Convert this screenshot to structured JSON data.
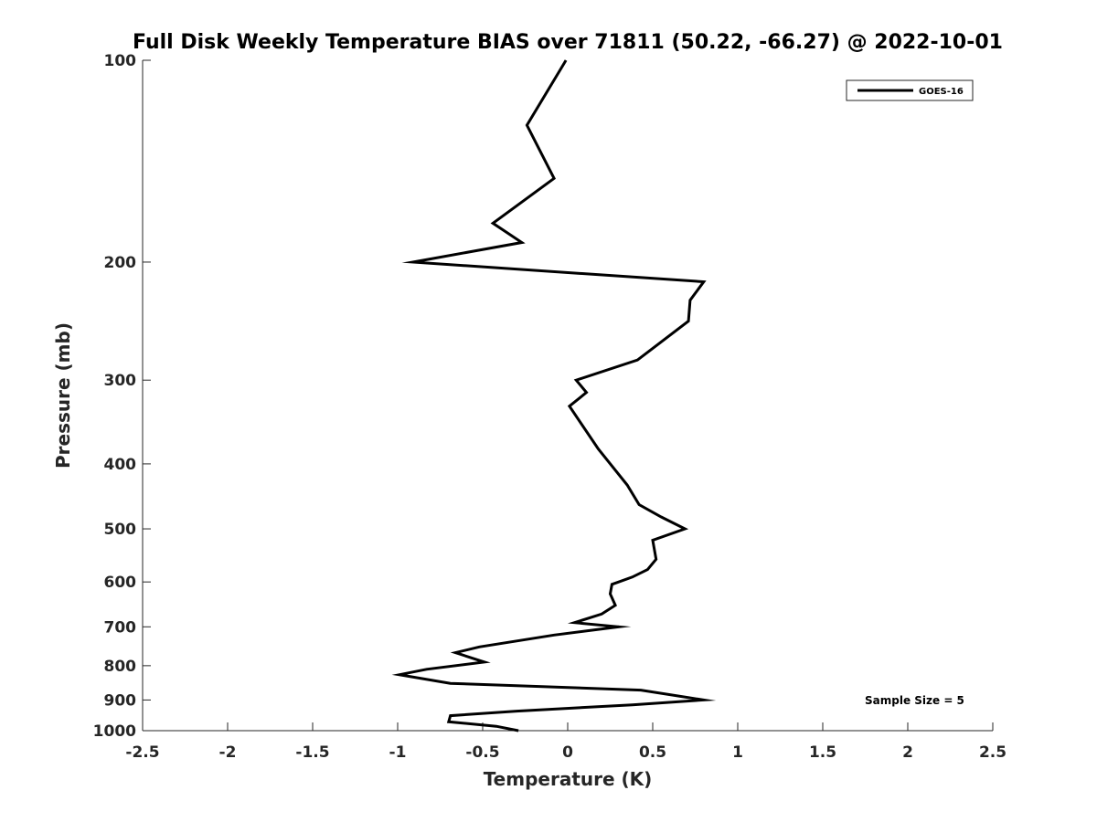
{
  "chart_data": {
    "type": "line",
    "title": "Full Disk Weekly Temperature BIAS over 71811 (50.22, -66.27) @ 2022-10-01",
    "xlabel": "Temperature (K)",
    "ylabel": "Pressure (mb)",
    "xlim": [
      -2.5,
      2.5
    ],
    "ylim": [
      100,
      1000
    ],
    "y_scale": "log",
    "y_reversed": true,
    "x_ticks": [
      "-2.5",
      "-2",
      "-1.5",
      "-1",
      "-0.5",
      "0",
      "0.5",
      "1",
      "1.5",
      "2",
      "2.5"
    ],
    "y_ticks": [
      "100",
      "200",
      "300",
      "400",
      "500",
      "600",
      "700",
      "800",
      "900",
      "1000"
    ],
    "grid": false,
    "legend": {
      "position": "top-right",
      "entries": [
        "GOES-16"
      ]
    },
    "annotation": "Sample Size = 5",
    "series": [
      {
        "name": "GOES-16",
        "color": "#000000",
        "points": [
          {
            "x": -0.01,
            "y": 100
          },
          {
            "x": -0.24,
            "y": 125
          },
          {
            "x": -0.08,
            "y": 150
          },
          {
            "x": -0.44,
            "y": 175
          },
          {
            "x": -0.27,
            "y": 187
          },
          {
            "x": -0.91,
            "y": 200
          },
          {
            "x": 0.8,
            "y": 214
          },
          {
            "x": 0.72,
            "y": 228
          },
          {
            "x": 0.71,
            "y": 245
          },
          {
            "x": 0.41,
            "y": 280
          },
          {
            "x": 0.05,
            "y": 300
          },
          {
            "x": 0.11,
            "y": 313
          },
          {
            "x": 0.01,
            "y": 328
          },
          {
            "x": 0.18,
            "y": 380
          },
          {
            "x": 0.35,
            "y": 430
          },
          {
            "x": 0.42,
            "y": 460
          },
          {
            "x": 0.55,
            "y": 480
          },
          {
            "x": 0.69,
            "y": 500
          },
          {
            "x": 0.5,
            "y": 520
          },
          {
            "x": 0.52,
            "y": 555
          },
          {
            "x": 0.47,
            "y": 575
          },
          {
            "x": 0.38,
            "y": 590
          },
          {
            "x": 0.26,
            "y": 605
          },
          {
            "x": 0.25,
            "y": 625
          },
          {
            "x": 0.28,
            "y": 650
          },
          {
            "x": 0.2,
            "y": 670
          },
          {
            "x": 0.04,
            "y": 690
          },
          {
            "x": 0.3,
            "y": 700
          },
          {
            "x": -0.08,
            "y": 720
          },
          {
            "x": -0.52,
            "y": 750
          },
          {
            "x": -0.66,
            "y": 765
          },
          {
            "x": -0.49,
            "y": 790
          },
          {
            "x": -0.83,
            "y": 810
          },
          {
            "x": -0.99,
            "y": 825
          },
          {
            "x": -0.69,
            "y": 850
          },
          {
            "x": 0.43,
            "y": 870
          },
          {
            "x": 0.8,
            "y": 900
          },
          {
            "x": 0.38,
            "y": 915
          },
          {
            "x": -0.3,
            "y": 935
          },
          {
            "x": -0.69,
            "y": 950
          },
          {
            "x": -0.7,
            "y": 970
          },
          {
            "x": -0.42,
            "y": 985
          },
          {
            "x": -0.29,
            "y": 1000
          }
        ]
      }
    ]
  }
}
